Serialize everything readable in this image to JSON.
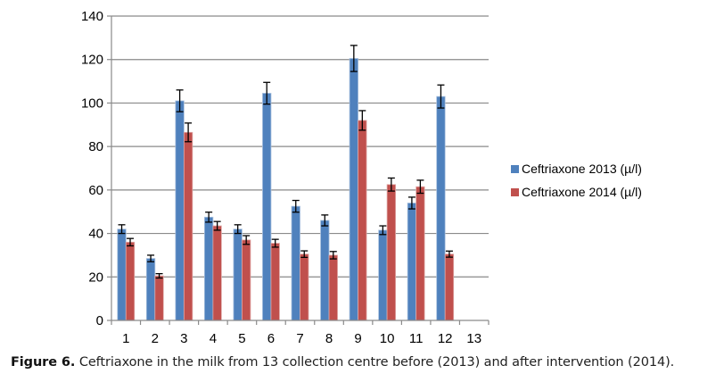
{
  "chart_data": {
    "type": "bar",
    "title": "",
    "xlabel": "",
    "ylabel": "",
    "ylim": [
      0,
      140
    ],
    "yticks": [
      0,
      20,
      40,
      60,
      80,
      100,
      120,
      140
    ],
    "categories": [
      "1",
      "2",
      "3",
      "4",
      "5",
      "6",
      "7",
      "8",
      "9",
      "10",
      "11",
      "12",
      "13"
    ],
    "grid": true,
    "legend_position": "right",
    "series": [
      {
        "name": "Ceftriaxone 2013 (µ/l)",
        "color": "#4F81BD",
        "values": [
          42,
          28.5,
          101,
          47.5,
          42,
          104.5,
          52.5,
          46,
          120.5,
          41.5,
          54,
          103,
          null
        ],
        "errors": [
          2,
          1.5,
          5,
          2.3,
          2,
          5,
          2.7,
          2.5,
          6,
          2,
          2.7,
          5.3,
          null
        ]
      },
      {
        "name": "Ceftriaxone 2014 (µ/l)",
        "color": "#C0504D",
        "values": [
          36,
          20.5,
          86.5,
          43.5,
          37,
          35.5,
          30.5,
          30,
          92,
          62.5,
          61.5,
          30.5,
          null
        ],
        "errors": [
          1.7,
          1,
          4.3,
          2,
          2,
          1.8,
          1.5,
          1.7,
          4.5,
          3,
          3,
          1.4,
          null
        ]
      }
    ]
  },
  "caption": {
    "label": "Figure 6.",
    "text": " Ceftriaxone in the milk from 13 collection centre before (2013) and after intervention (2014)."
  }
}
